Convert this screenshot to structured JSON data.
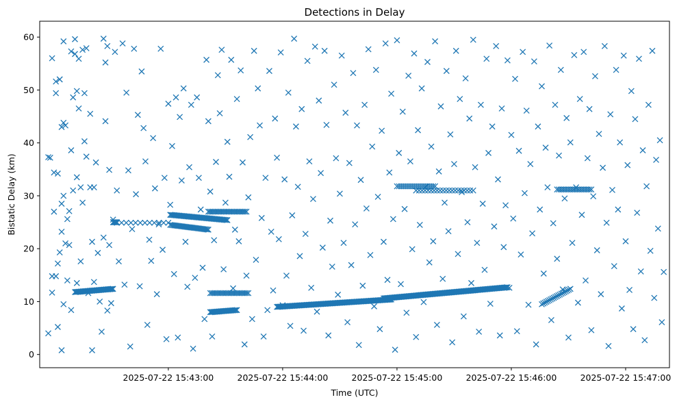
{
  "chart_data": {
    "type": "scatter",
    "title": "Detections in Delay",
    "xlabel": "Time (UTC)",
    "ylabel": "Bistatic Delay (km)",
    "x_tick_labels": [
      "2025-07-22 15:43:00",
      "2025-07-22 15:44:00",
      "2025-07-22 15:45:00",
      "2025-07-22 15:46:00",
      "2025-07-22 15:47:00"
    ],
    "x_ticks_seconds_after_1542": [
      60,
      120,
      180,
      240,
      300
    ],
    "y_ticks": [
      0,
      10,
      20,
      30,
      40,
      50,
      60
    ],
    "xlim_seconds_after_1542": [
      -7.5,
      323
    ],
    "ylim": [
      -2.5,
      63
    ],
    "marker": "x",
    "color": "#1f77b4",
    "grid": false,
    "series": [
      {
        "tracks": [
          {
            "t0": 11,
            "t1": 31,
            "y0": 11.8,
            "y1": 12.4,
            "n": 40
          },
          {
            "t0": 31,
            "t1": 33,
            "y0": 25,
            "y1": 25,
            "n": 6
          },
          {
            "t0": 33,
            "t1": 60,
            "y0": 24.9,
            "y1": 24.9,
            "n": 12
          },
          {
            "t0": 61,
            "t1": 91,
            "y0": 26.4,
            "y1": 25.4,
            "n": 50
          },
          {
            "t0": 61,
            "t1": 81,
            "y0": 24.5,
            "y1": 23.6,
            "n": 30
          },
          {
            "t0": 81,
            "t1": 101,
            "y0": 27,
            "y1": 27,
            "n": 25
          },
          {
            "t0": 82,
            "t1": 96,
            "y0": 8.0,
            "y1": 8.4,
            "n": 25
          },
          {
            "t0": 82,
            "t1": 102,
            "y0": 11.6,
            "y1": 11.6,
            "n": 25
          },
          {
            "t0": 117,
            "t1": 177,
            "y0": 9.0,
            "y1": 10.4,
            "n": 120
          },
          {
            "t0": 173,
            "t1": 238,
            "y0": 10.6,
            "y1": 12.7,
            "n": 130
          },
          {
            "t0": 180,
            "t1": 200,
            "y0": 31.8,
            "y1": 31.8,
            "n": 20
          },
          {
            "t0": 190,
            "t1": 220,
            "y0": 31.0,
            "y1": 31.0,
            "n": 20
          },
          {
            "t0": 256,
            "t1": 271,
            "y0": 9.5,
            "y1": 12.4,
            "n": 20
          },
          {
            "t0": 264,
            "t1": 282,
            "y0": 31.2,
            "y1": 31.2,
            "n": 20
          }
        ]
      }
    ],
    "scatter_points": [
      [
        -3,
        4
      ],
      [
        -3,
        37.3
      ],
      [
        -2,
        37.2
      ],
      [
        -1,
        56
      ],
      [
        -1,
        14.8
      ],
      [
        -1,
        11.7
      ],
      [
        0,
        34.4
      ],
      [
        0,
        27
      ],
      [
        1,
        49.4
      ],
      [
        1,
        51.6
      ],
      [
        1,
        14.8
      ],
      [
        2,
        34.2
      ],
      [
        2,
        17.2
      ],
      [
        2,
        5.2
      ],
      [
        3,
        52
      ],
      [
        3,
        19.3
      ],
      [
        3,
        52
      ],
      [
        4,
        43
      ],
      [
        4,
        28.5
      ],
      [
        4,
        23.2
      ],
      [
        4,
        0.8
      ],
      [
        5,
        59.2
      ],
      [
        5,
        43.8
      ],
      [
        5,
        30
      ],
      [
        5,
        9.5
      ],
      [
        6,
        43.3
      ],
      [
        6,
        21
      ],
      [
        7,
        25.6
      ],
      [
        7,
        14
      ],
      [
        8,
        20.7
      ],
      [
        8,
        27.1
      ],
      [
        9,
        38.6
      ],
      [
        9,
        8.4
      ],
      [
        9,
        57.3
      ],
      [
        10,
        48.6
      ],
      [
        10,
        31
      ],
      [
        11,
        59.6
      ],
      [
        11,
        56.8
      ],
      [
        12,
        49.8
      ],
      [
        12,
        33.5
      ],
      [
        12,
        13.5
      ],
      [
        13,
        46.5
      ],
      [
        13,
        55.9
      ],
      [
        14,
        17.6
      ],
      [
        14,
        31.6
      ],
      [
        15,
        28.7
      ],
      [
        15,
        57.6
      ],
      [
        16,
        49.4
      ],
      [
        16,
        40.3
      ],
      [
        17,
        57.9
      ],
      [
        17,
        37.4
      ],
      [
        18,
        11.6
      ],
      [
        19,
        31.6
      ],
      [
        19,
        45.5
      ],
      [
        20,
        21.3
      ],
      [
        20,
        0.8
      ],
      [
        21,
        31.6
      ],
      [
        21,
        13.7
      ],
      [
        22,
        36.3
      ],
      [
        23,
        19.2
      ],
      [
        24,
        10
      ],
      [
        25,
        4.3
      ],
      [
        26,
        22.1
      ],
      [
        26,
        59.7
      ],
      [
        27,
        55.2
      ],
      [
        27,
        44.1
      ],
      [
        28,
        58.3
      ],
      [
        28,
        8.3
      ],
      [
        29,
        34.9
      ],
      [
        29,
        20.7
      ],
      [
        30,
        9.7
      ],
      [
        31,
        25.5
      ],
      [
        32,
        57.2
      ],
      [
        33,
        31
      ],
      [
        34,
        17.6
      ],
      [
        36,
        58.8
      ],
      [
        37,
        13.2
      ],
      [
        38,
        49.5
      ],
      [
        39,
        34.8
      ],
      [
        40,
        1.5
      ],
      [
        41,
        23.7
      ],
      [
        42,
        57.8
      ],
      [
        43,
        30.3
      ],
      [
        44,
        45.3
      ],
      [
        45,
        12.9
      ],
      [
        46,
        53.5
      ],
      [
        47,
        42.8
      ],
      [
        48,
        36.5
      ],
      [
        49,
        5.6
      ],
      [
        50,
        21.7
      ],
      [
        51,
        17.7
      ],
      [
        52,
        40.9
      ],
      [
        53,
        31.4
      ],
      [
        54,
        11.4
      ],
      [
        55,
        24.6
      ],
      [
        56,
        57.8
      ],
      [
        57,
        19.8
      ],
      [
        58,
        33.4
      ],
      [
        59,
        2.9
      ],
      [
        60,
        47.4
      ],
      [
        61,
        28.3
      ],
      [
        62,
        39.4
      ],
      [
        63,
        15.2
      ],
      [
        64,
        48.6
      ],
      [
        65,
        3.2
      ],
      [
        66,
        44.9
      ],
      [
        67,
        32.9
      ],
      [
        68,
        50.3
      ],
      [
        69,
        21.3
      ],
      [
        70,
        12.8
      ],
      [
        71,
        35.4
      ],
      [
        72,
        47.2
      ],
      [
        73,
        1.1
      ],
      [
        74,
        14.5
      ],
      [
        75,
        48.6
      ],
      [
        76,
        33.4
      ],
      [
        77,
        27.4
      ],
      [
        78,
        16.4
      ],
      [
        79,
        6.7
      ],
      [
        80,
        55.7
      ],
      [
        81,
        44.1
      ],
      [
        82,
        30.8
      ],
      [
        83,
        3.4
      ],
      [
        84,
        21.6
      ],
      [
        85,
        36.4
      ],
      [
        86,
        52.8
      ],
      [
        87,
        45.6
      ],
      [
        88,
        57.6
      ],
      [
        89,
        16.1
      ],
      [
        90,
        28.7
      ],
      [
        91,
        40.2
      ],
      [
        92,
        33.6
      ],
      [
        93,
        55.7
      ],
      [
        94,
        12.5
      ],
      [
        95,
        23.6
      ],
      [
        96,
        48.3
      ],
      [
        97,
        21.4
      ],
      [
        98,
        53.7
      ],
      [
        99,
        36.3
      ],
      [
        100,
        1.9
      ],
      [
        101,
        14.9
      ],
      [
        102,
        29.7
      ],
      [
        103,
        41.1
      ],
      [
        104,
        6.7
      ],
      [
        105,
        57.4
      ],
      [
        106,
        17.9
      ],
      [
        107,
        50.3
      ],
      [
        108,
        43.3
      ],
      [
        109,
        25.8
      ],
      [
        110,
        3.4
      ],
      [
        111,
        33.4
      ],
      [
        112,
        8.4
      ],
      [
        113,
        53.6
      ],
      [
        114,
        23.2
      ],
      [
        115,
        12.1
      ],
      [
        116,
        44.6
      ],
      [
        117,
        37.2
      ],
      [
        118,
        21.8
      ],
      [
        119,
        57.1
      ],
      [
        120,
        9.3
      ],
      [
        121,
        33.1
      ],
      [
        122,
        14.9
      ],
      [
        123,
        49.5
      ],
      [
        124,
        5.4
      ],
      [
        125,
        26.3
      ],
      [
        126,
        59.7
      ],
      [
        127,
        43.1
      ],
      [
        128,
        31.7
      ],
      [
        129,
        18.6
      ],
      [
        130,
        46.4
      ],
      [
        131,
        4.5
      ],
      [
        132,
        22.8
      ],
      [
        133,
        55.5
      ],
      [
        134,
        36.5
      ],
      [
        135,
        12.6
      ],
      [
        136,
        29.4
      ],
      [
        137,
        58.2
      ],
      [
        138,
        8.1
      ],
      [
        139,
        48
      ],
      [
        140,
        34.3
      ],
      [
        141,
        20.2
      ],
      [
        142,
        57.4
      ],
      [
        143,
        43.4
      ],
      [
        144,
        3.6
      ],
      [
        145,
        25.3
      ],
      [
        146,
        16.6
      ],
      [
        147,
        51
      ],
      [
        148,
        37.1
      ],
      [
        149,
        11.3
      ],
      [
        150,
        30.4
      ],
      [
        151,
        56.5
      ],
      [
        152,
        21.1
      ],
      [
        153,
        45.7
      ],
      [
        154,
        6.1
      ],
      [
        155,
        36.2
      ],
      [
        156,
        16.9
      ],
      [
        157,
        53.2
      ],
      [
        158,
        24.6
      ],
      [
        159,
        43.3
      ],
      [
        160,
        1.8
      ],
      [
        161,
        33
      ],
      [
        162,
        13
      ],
      [
        163,
        47.2
      ],
      [
        164,
        27.6
      ],
      [
        165,
        57.7
      ],
      [
        166,
        18.8
      ],
      [
        167,
        39.3
      ],
      [
        168,
        9.1
      ],
      [
        169,
        53.8
      ],
      [
        170,
        29.8
      ],
      [
        171,
        4.8
      ],
      [
        172,
        42.3
      ],
      [
        173,
        21.3
      ],
      [
        174,
        58.8
      ],
      [
        175,
        14.1
      ],
      [
        176,
        34.4
      ],
      [
        177,
        49.3
      ],
      [
        178,
        25.6
      ],
      [
        179,
        0.9
      ],
      [
        180,
        59.4
      ],
      [
        181,
        38.1
      ],
      [
        182,
        13.3
      ],
      [
        183,
        45.9
      ],
      [
        184,
        27.5
      ],
      [
        185,
        7.9
      ],
      [
        186,
        52.7
      ],
      [
        187,
        36.5
      ],
      [
        188,
        19.9
      ],
      [
        189,
        56.9
      ],
      [
        190,
        3.3
      ],
      [
        191,
        42.4
      ],
      [
        192,
        24.5
      ],
      [
        193,
        50.3
      ],
      [
        194,
        9.9
      ],
      [
        195,
        31.7
      ],
      [
        196,
        55.3
      ],
      [
        197,
        17.4
      ],
      [
        198,
        39.3
      ],
      [
        199,
        21.4
      ],
      [
        200,
        59.2
      ],
      [
        201,
        5.6
      ],
      [
        202,
        34.6
      ],
      [
        203,
        46.9
      ],
      [
        204,
        14.3
      ],
      [
        205,
        28.7
      ],
      [
        206,
        53.6
      ],
      [
        207,
        23.3
      ],
      [
        208,
        41.6
      ],
      [
        209,
        2.3
      ],
      [
        210,
        36
      ],
      [
        211,
        57.4
      ],
      [
        212,
        19
      ],
      [
        213,
        48.3
      ],
      [
        214,
        30.7
      ],
      [
        215,
        7.2
      ],
      [
        216,
        52.2
      ],
      [
        217,
        25
      ],
      [
        218,
        44.6
      ],
      [
        219,
        13.5
      ],
      [
        220,
        59.5
      ],
      [
        221,
        35.4
      ],
      [
        222,
        21.1
      ],
      [
        223,
        4.3
      ],
      [
        224,
        47.2
      ],
      [
        225,
        28.5
      ],
      [
        226,
        16
      ],
      [
        227,
        55.9
      ],
      [
        228,
        38.1
      ],
      [
        229,
        9.6
      ],
      [
        230,
        43.1
      ],
      [
        231,
        24.2
      ],
      [
        232,
        58.3
      ],
      [
        233,
        33.1
      ],
      [
        234,
        3.6
      ],
      [
        235,
        46.5
      ],
      [
        236,
        20.3
      ],
      [
        237,
        28.2
      ],
      [
        238,
        55.6
      ],
      [
        239,
        12.6
      ],
      [
        240,
        41.5
      ],
      [
        241,
        25.7
      ],
      [
        242,
        52.1
      ],
      [
        243,
        4.4
      ],
      [
        244,
        38.5
      ],
      [
        245,
        18.9
      ],
      [
        246,
        57.2
      ],
      [
        247,
        30.5
      ],
      [
        248,
        46.1
      ],
      [
        249,
        9.4
      ],
      [
        250,
        36
      ],
      [
        251,
        22.9
      ],
      [
        252,
        55.4
      ],
      [
        253,
        1.9
      ],
      [
        254,
        43.1
      ],
      [
        255,
        27.4
      ],
      [
        256,
        50.7
      ],
      [
        257,
        15.3
      ],
      [
        258,
        39.1
      ],
      [
        259,
        31.6
      ],
      [
        260,
        58.4
      ],
      [
        261,
        6.5
      ],
      [
        262,
        24.8
      ],
      [
        263,
        47.2
      ],
      [
        264,
        18.1
      ],
      [
        265,
        37.6
      ],
      [
        266,
        53.8
      ],
      [
        267,
        12.3
      ],
      [
        268,
        29.5
      ],
      [
        269,
        44.7
      ],
      [
        270,
        3.2
      ],
      [
        271,
        40.1
      ],
      [
        272,
        21.1
      ],
      [
        273,
        56.6
      ],
      [
        274,
        31.6
      ],
      [
        275,
        9.8
      ],
      [
        276,
        48.3
      ],
      [
        277,
        26.4
      ],
      [
        278,
        57.2
      ],
      [
        279,
        14
      ],
      [
        280,
        37.1
      ],
      [
        281,
        46.4
      ],
      [
        282,
        4.6
      ],
      [
        283,
        29.9
      ],
      [
        284,
        52.6
      ],
      [
        285,
        19.7
      ],
      [
        286,
        41.7
      ],
      [
        287,
        11.4
      ],
      [
        288,
        35.3
      ],
      [
        289,
        58.3
      ],
      [
        290,
        24.9
      ],
      [
        291,
        1.6
      ],
      [
        292,
        45.4
      ],
      [
        293,
        31.1
      ],
      [
        294,
        16.7
      ],
      [
        295,
        53.8
      ],
      [
        296,
        27.4
      ],
      [
        297,
        40.1
      ],
      [
        298,
        8.7
      ],
      [
        299,
        56.5
      ],
      [
        300,
        21.4
      ],
      [
        301,
        35.8
      ],
      [
        302,
        12.2
      ],
      [
        303,
        49.8
      ],
      [
        304,
        4.8
      ],
      [
        305,
        44.5
      ],
      [
        306,
        26.8
      ],
      [
        307,
        55.9
      ],
      [
        308,
        15.7
      ],
      [
        309,
        38.6
      ],
      [
        310,
        2.7
      ],
      [
        311,
        31.8
      ],
      [
        312,
        47.2
      ],
      [
        313,
        19.6
      ],
      [
        314,
        57.4
      ],
      [
        315,
        10.7
      ],
      [
        316,
        36.8
      ],
      [
        317,
        23.8
      ],
      [
        318,
        40.5
      ],
      [
        319,
        6.1
      ],
      [
        320,
        15.6
      ]
    ]
  }
}
